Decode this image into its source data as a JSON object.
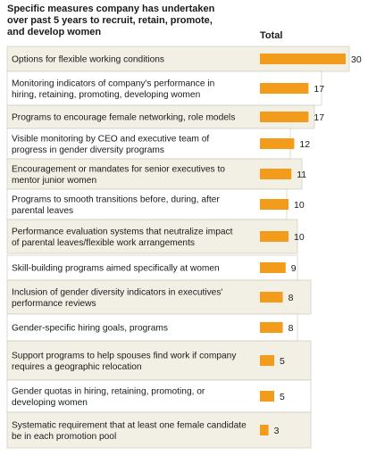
{
  "header": {
    "title": "Specific measures company has undertaken over past 5 years to recruit, retain, promote, and develop women",
    "column_label": "Total"
  },
  "colors": {
    "bar": "#f39c1c",
    "row_band": "#f2efe4",
    "row_border": "#c9c4b3",
    "text": "#1a1a1a"
  },
  "chart_data": {
    "type": "bar",
    "orientation": "horizontal",
    "title": "Specific measures company has undertaken over past 5 years to recruit, retain, promote, and develop women",
    "series": [
      {
        "name": "Total",
        "values": [
          30,
          17,
          17,
          12,
          11,
          10,
          10,
          9,
          8,
          8,
          5,
          5,
          3
        ]
      }
    ],
    "categories": [
      [
        "Options for flexible working conditions"
      ],
      [
        "Monitoring indicators of company's performance in",
        "hiring, retaining, promoting, developing women"
      ],
      [
        "Programs to encourage female networking, role models"
      ],
      [
        "Visible monitoring by CEO and executive team of",
        "progress in gender diversity programs"
      ],
      [
        "Encouragement or mandates for senior executives to",
        "mentor junior women"
      ],
      [
        "Programs to smooth transitions before, during, after",
        "parental leaves"
      ],
      [
        "Performance evaluation systems that neutralize impact",
        "of parental leaves/flexible work arrangements"
      ],
      [
        "Skill-building programs aimed specifically at women"
      ],
      [
        "Inclusion of gender diversity indicators in executives'",
        "performance reviews"
      ],
      [
        "Gender-specific hiring goals, programs"
      ],
      [
        "Support programs to help spouses find work if company",
        "requires a geographic relocation"
      ],
      [
        "Gender quotas in hiring, retaining, promoting, or",
        "developing women"
      ],
      [
        "Systematic requirement that at least one female candidate",
        "be in each promotion pool"
      ]
    ],
    "values": [
      30,
      17,
      17,
      12,
      11,
      10,
      10,
      9,
      8,
      8,
      5,
      5,
      3
    ],
    "xlim": [
      0,
      30
    ],
    "grid": false,
    "legend": "none"
  }
}
